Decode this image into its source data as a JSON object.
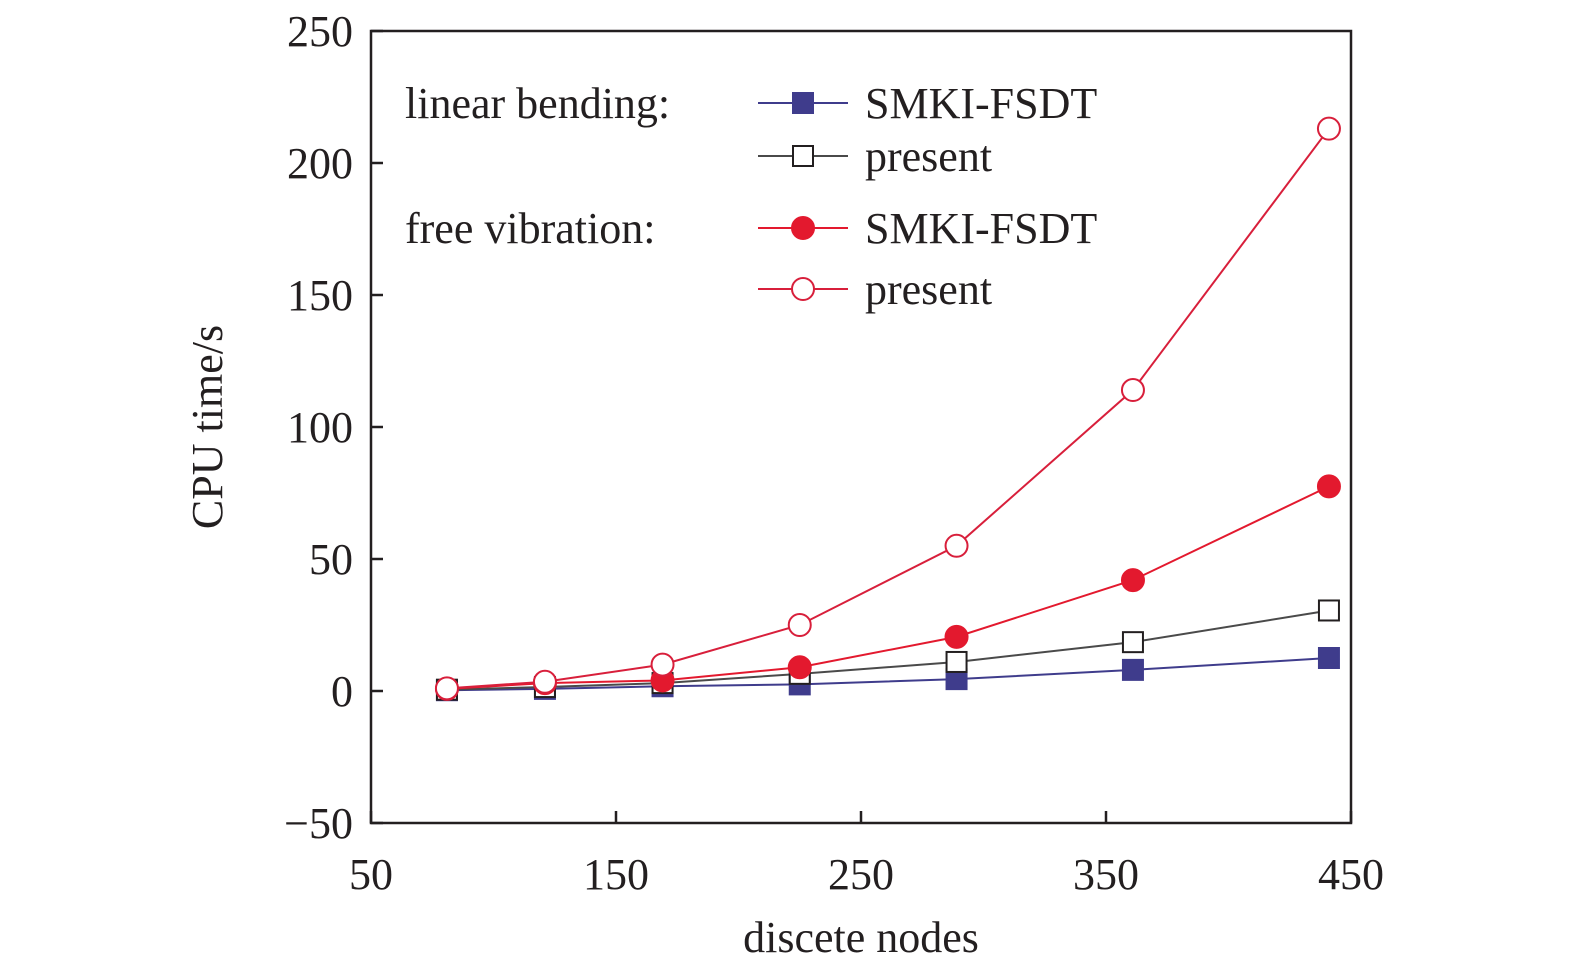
{
  "chart_data": {
    "type": "line",
    "title": "",
    "xlabel": "discete nodes",
    "ylabel": "CPU time/s",
    "xlim": [
      50,
      450
    ],
    "ylim": [
      -50,
      250
    ],
    "xticks": [
      50,
      150,
      250,
      350,
      450
    ],
    "yticks": [
      -50,
      0,
      50,
      100,
      150,
      200,
      250
    ],
    "x": [
      81,
      121,
      169,
      225,
      289,
      361,
      441
    ],
    "legend": {
      "placement": "top-left",
      "groups": [
        {
          "label": "linear bending:",
          "series": [
            "SMKI-FSDT",
            "present"
          ]
        },
        {
          "label": "free vibration:",
          "series": [
            "SMKI-FSDT",
            "present"
          ]
        }
      ]
    },
    "series": [
      {
        "name": "SMKI-FSDT",
        "group": "linear bending",
        "color": "#3f3c8c",
        "marker": "square",
        "filled": true,
        "values": [
          0.3,
          0.8,
          1.8,
          2.5,
          4.5,
          8,
          12.5
        ]
      },
      {
        "name": "present",
        "group": "linear bending",
        "color": "#4a4a4a",
        "marker": "square",
        "filled": false,
        "values": [
          0.5,
          1.5,
          3,
          6.5,
          11,
          18.5,
          30.5
        ]
      },
      {
        "name": "SMKI-FSDT",
        "group": "free vibration",
        "color": "#e3192e",
        "marker": "circle",
        "filled": true,
        "values": [
          0.8,
          3,
          4,
          9,
          20.5,
          42,
          77.5
        ]
      },
      {
        "name": "present",
        "group": "free vibration",
        "color": "#d81f3b",
        "marker": "circle",
        "filled": false,
        "values": [
          1,
          3.5,
          10,
          25,
          55,
          114,
          213
        ]
      }
    ]
  }
}
